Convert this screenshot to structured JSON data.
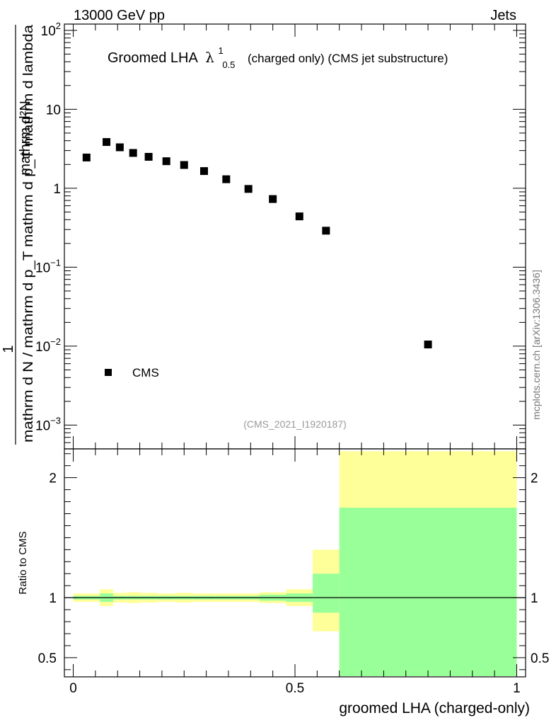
{
  "header": {
    "energy_label": "13000 GeV pp",
    "process_label": "Jets"
  },
  "side_label": "mcplots.cern.ch [arXiv:1306.3436]",
  "chart_data": [
    {
      "type": "scatter",
      "name": "main",
      "title_main": "Groomed LHA",
      "title_symbol": "λ",
      "title_sup": "1",
      "title_sub": "0.5",
      "title_rest": "(charged only) (CMS jet substructure)",
      "analysis_id": "(CMS_2021_I1920187)",
      "ylabel_num": "1",
      "ylabel_den": "mathrm d N / mathrm d p_T mathrm d p_T mathrm d lambda",
      "ylabel_top": "mathrm d²N",
      "yscale": "log",
      "ylim": [
        0.0005,
        120
      ],
      "xlim": [
        -0.02,
        1.02
      ],
      "ytick_labels": [
        {
          "value": 100,
          "base": "10",
          "exp": "2"
        },
        {
          "value": 10,
          "base": "10",
          "exp": ""
        },
        {
          "value": 1,
          "base": "1",
          "exp": ""
        },
        {
          "value": 0.1,
          "base": "10",
          "exp": "−1"
        },
        {
          "value": 0.01,
          "base": "10",
          "exp": "−2"
        },
        {
          "value": 0.001,
          "base": "10",
          "exp": "−3"
        }
      ],
      "legend": [
        {
          "label": "CMS",
          "marker": "square",
          "color": "#000000"
        }
      ],
      "series": [
        {
          "name": "CMS",
          "x": [
            0.03,
            0.075,
            0.105,
            0.135,
            0.17,
            0.21,
            0.25,
            0.295,
            0.345,
            0.395,
            0.45,
            0.51,
            0.57,
            0.8
          ],
          "y": [
            2.45,
            3.85,
            3.3,
            2.8,
            2.5,
            2.2,
            1.97,
            1.65,
            1.3,
            0.98,
            0.73,
            0.44,
            0.29,
            0.0105
          ]
        }
      ]
    },
    {
      "type": "area",
      "name": "ratio",
      "ylabel": "Ratio to CMS",
      "xlabel": "groomed LHA (charged-only)",
      "xlim": [
        -0.02,
        1.02
      ],
      "ylim": [
        0.34,
        2.24
      ],
      "x_tick_labels": [
        {
          "value": 0,
          "label": "0"
        },
        {
          "value": 0.5,
          "label": "0.5"
        },
        {
          "value": 1,
          "label": "1"
        }
      ],
      "y_tick_labels": [
        {
          "value": 0.5,
          "label": "0.5"
        },
        {
          "value": 1,
          "label": "1"
        },
        {
          "value": 2,
          "label": "2"
        }
      ],
      "reference_line": 1,
      "bin_edges": [
        0.0,
        0.06,
        0.09,
        0.12,
        0.15,
        0.19,
        0.23,
        0.27,
        0.32,
        0.37,
        0.42,
        0.48,
        0.54,
        0.6,
        1.0
      ],
      "stat_band": {
        "color": "#99ff99",
        "lo": [
          0.985,
          0.965,
          0.985,
          0.985,
          0.985,
          0.985,
          0.985,
          0.985,
          0.985,
          0.985,
          0.975,
          0.965,
          0.875,
          0.34
        ],
        "hi": [
          1.015,
          1.035,
          1.015,
          1.015,
          1.015,
          1.015,
          1.015,
          1.015,
          1.015,
          1.015,
          1.025,
          1.035,
          1.2,
          1.75
        ]
      },
      "syst_band": {
        "color": "#ffff99",
        "lo": [
          0.965,
          0.93,
          0.96,
          0.955,
          0.96,
          0.965,
          0.96,
          0.965,
          0.965,
          0.965,
          0.955,
          0.93,
          0.72,
          0.34
        ],
        "hi": [
          1.035,
          1.07,
          1.04,
          1.045,
          1.04,
          1.035,
          1.04,
          1.035,
          1.035,
          1.035,
          1.045,
          1.07,
          1.4,
          2.22
        ]
      }
    }
  ]
}
